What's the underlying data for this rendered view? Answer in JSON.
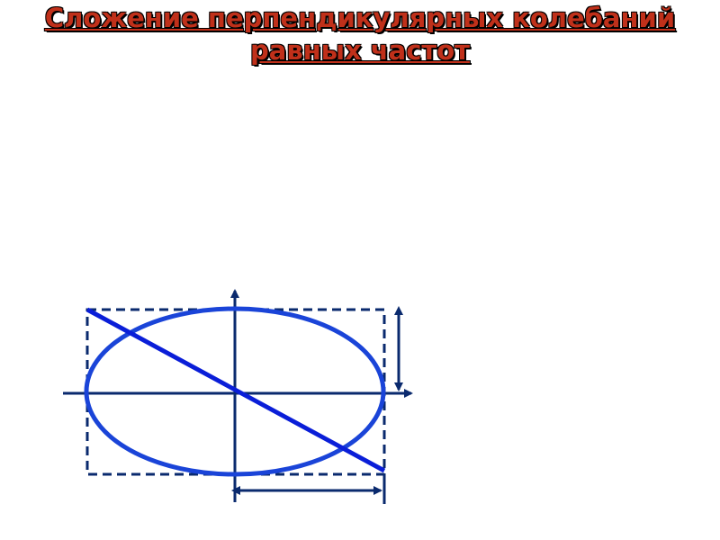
{
  "header": {
    "title": "Сложение перпендикулярных колебаний равных частот"
  }
}
